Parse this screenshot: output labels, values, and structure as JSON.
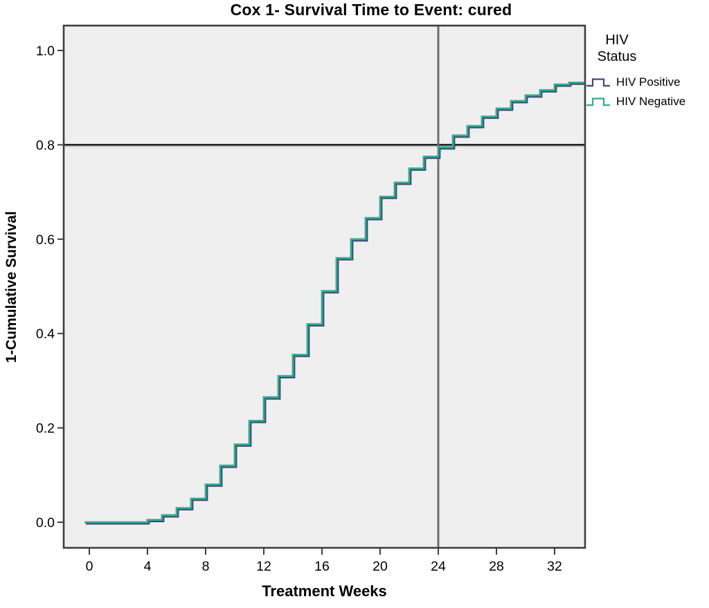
{
  "title": "Cox 1- Survival Time to Event: cured",
  "axes": {
    "x_label": "Treatment Weeks",
    "y_label": "1-Cumulative Survival"
  },
  "legend": {
    "title_lines": [
      "HIV",
      "Status"
    ],
    "entries": [
      {
        "label": "HIV Positive",
        "color": "#3e4a72"
      },
      {
        "label": "HIV Negative",
        "color": "#2fae8f"
      }
    ]
  },
  "chart_data": {
    "type": "line",
    "subtype": "step",
    "title": "Cox 1- Survival Time to Event: cured",
    "xlabel": "Treatment Weeks",
    "ylabel": "1-Cumulative Survival",
    "xlim": [
      -1.8,
      34.1
    ],
    "ylim": [
      -0.055,
      1.05
    ],
    "x_ticks": [
      0,
      4,
      8,
      12,
      16,
      20,
      24,
      28,
      32
    ],
    "y_ticks": [
      0.0,
      0.2,
      0.4,
      0.6,
      0.8,
      1.0
    ],
    "y_tick_labels": [
      "0.0",
      "0.2",
      "0.4",
      "0.6",
      "0.8",
      "1.0"
    ],
    "grid": false,
    "legend_position": "right",
    "plot_bg": "#efefef",
    "frame_color": "#3d3d3d",
    "reference_lines": [
      {
        "axis": "y",
        "value": 0.8,
        "color": "#282828"
      },
      {
        "axis": "x",
        "value": 24,
        "color": "#6f6f6f"
      }
    ],
    "x_end": 34,
    "series": [
      {
        "name": "HIV Positive",
        "color": "#3e4a72",
        "steps": [
          [
            0,
            0
          ],
          [
            4,
            0.005
          ],
          [
            5,
            0.015
          ],
          [
            6,
            0.03
          ],
          [
            7,
            0.05
          ],
          [
            8,
            0.08
          ],
          [
            9,
            0.12
          ],
          [
            10,
            0.165
          ],
          [
            11,
            0.215
          ],
          [
            12,
            0.265
          ],
          [
            13,
            0.31
          ],
          [
            14,
            0.355
          ],
          [
            15,
            0.42
          ],
          [
            16,
            0.49
          ],
          [
            17,
            0.56
          ],
          [
            18,
            0.6
          ],
          [
            19,
            0.645
          ],
          [
            20,
            0.69
          ],
          [
            21,
            0.72
          ],
          [
            22,
            0.75
          ],
          [
            23,
            0.775
          ],
          [
            24,
            0.795
          ],
          [
            25,
            0.82
          ],
          [
            26,
            0.84
          ],
          [
            27,
            0.86
          ],
          [
            28,
            0.877
          ],
          [
            29,
            0.893
          ],
          [
            30,
            0.905
          ],
          [
            31,
            0.916
          ],
          [
            32,
            0.928
          ],
          [
            33,
            0.932
          ]
        ]
      },
      {
        "name": "HIV Negative",
        "color": "#2fae8f",
        "steps": [
          [
            0,
            0
          ],
          [
            4,
            0.005
          ],
          [
            5,
            0.015
          ],
          [
            6,
            0.03
          ],
          [
            7,
            0.05
          ],
          [
            8,
            0.08
          ],
          [
            9,
            0.12
          ],
          [
            10,
            0.165
          ],
          [
            11,
            0.215
          ],
          [
            12,
            0.265
          ],
          [
            13,
            0.31
          ],
          [
            14,
            0.355
          ],
          [
            15,
            0.42
          ],
          [
            16,
            0.49
          ],
          [
            17,
            0.56
          ],
          [
            18,
            0.6
          ],
          [
            19,
            0.645
          ],
          [
            20,
            0.69
          ],
          [
            21,
            0.72
          ],
          [
            22,
            0.75
          ],
          [
            23,
            0.775
          ],
          [
            24,
            0.795
          ],
          [
            25,
            0.82
          ],
          [
            26,
            0.84
          ],
          [
            27,
            0.86
          ],
          [
            28,
            0.877
          ],
          [
            29,
            0.893
          ],
          [
            30,
            0.905
          ],
          [
            31,
            0.916
          ],
          [
            32,
            0.928
          ],
          [
            33,
            0.932
          ]
        ]
      }
    ]
  }
}
